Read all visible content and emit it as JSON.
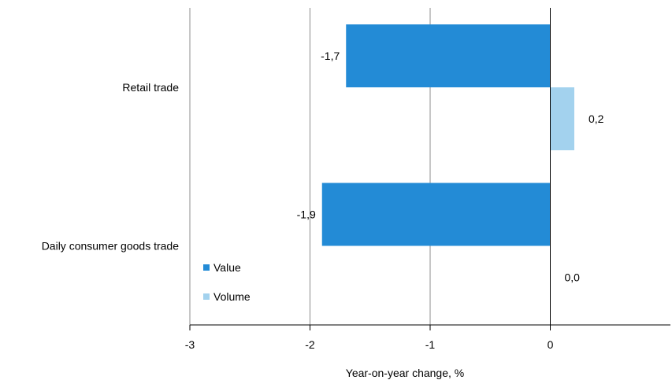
{
  "chart_data": {
    "type": "bar",
    "orientation": "horizontal",
    "categories": [
      "Retail trade",
      "Daily consumer goods trade"
    ],
    "series": [
      {
        "name": "Value",
        "color": "#238bd6",
        "values": [
          -1.7,
          -1.9
        ],
        "labels": [
          "-1,7",
          "-1,9"
        ]
      },
      {
        "name": "Volume",
        "color": "#a3d2ee",
        "values": [
          0.2,
          0.0
        ],
        "labels": [
          "0,2",
          "0,0"
        ]
      }
    ],
    "xlabel": "Year-on-year change, %",
    "ylabel": "",
    "xlim": [
      -3,
      1
    ],
    "xticks": [
      -3,
      -2,
      -1,
      0
    ],
    "xtick_labels": [
      "-3",
      "-2",
      "-1",
      "0"
    ],
    "grid": true,
    "legend_position": "bottom-left"
  }
}
